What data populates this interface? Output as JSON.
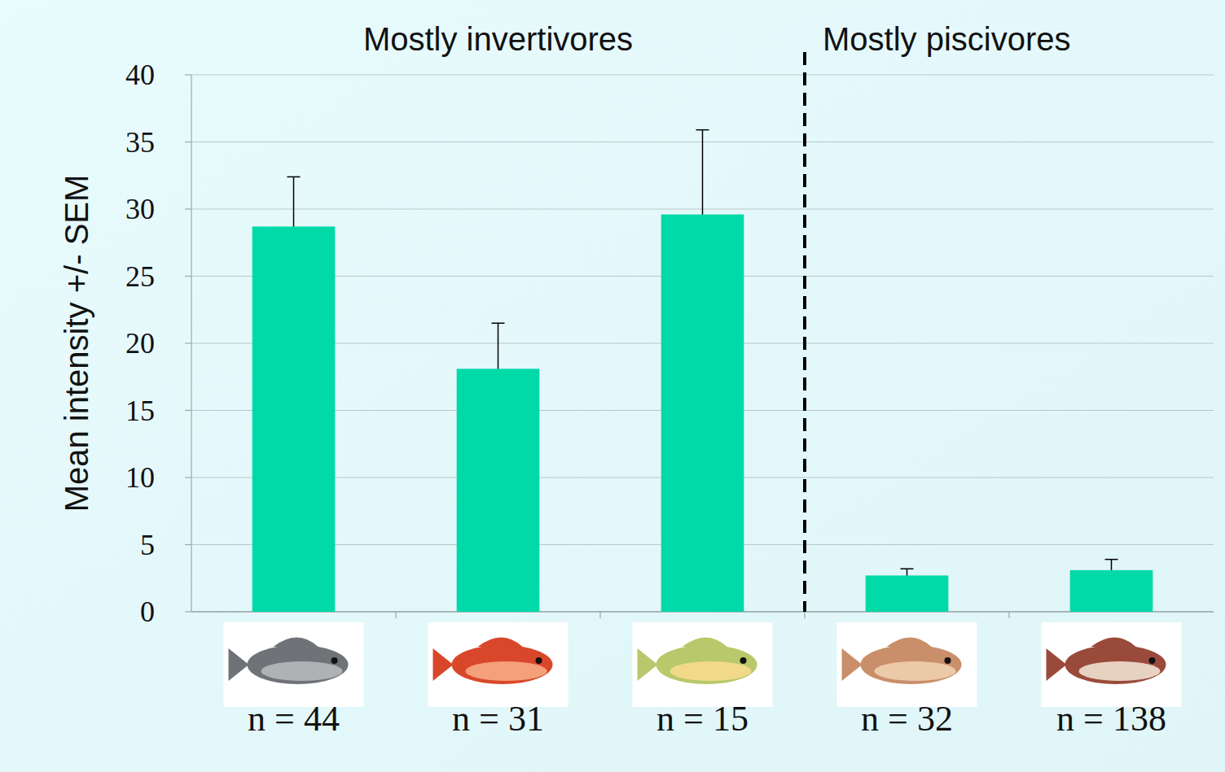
{
  "chart_data": {
    "type": "bar",
    "y_label": "Mean intensity +/- SEM",
    "categories": [
      "n = 44",
      "n = 31",
      "n = 15",
      "n = 32",
      "n = 138"
    ],
    "values": [
      28.7,
      18.1,
      29.6,
      2.7,
      3.1
    ],
    "errors": [
      3.7,
      3.4,
      6.3,
      0.5,
      0.8
    ],
    "groups": [
      {
        "label": "Mostly invertivores",
        "count": 3
      },
      {
        "label": "Mostly piscivores",
        "count": 2
      }
    ],
    "color": "#00d9a8",
    "ylim": [
      0,
      40
    ],
    "yticks": [
      0,
      5,
      10,
      15,
      20,
      25,
      30,
      35,
      40
    ],
    "grid": true
  }
}
